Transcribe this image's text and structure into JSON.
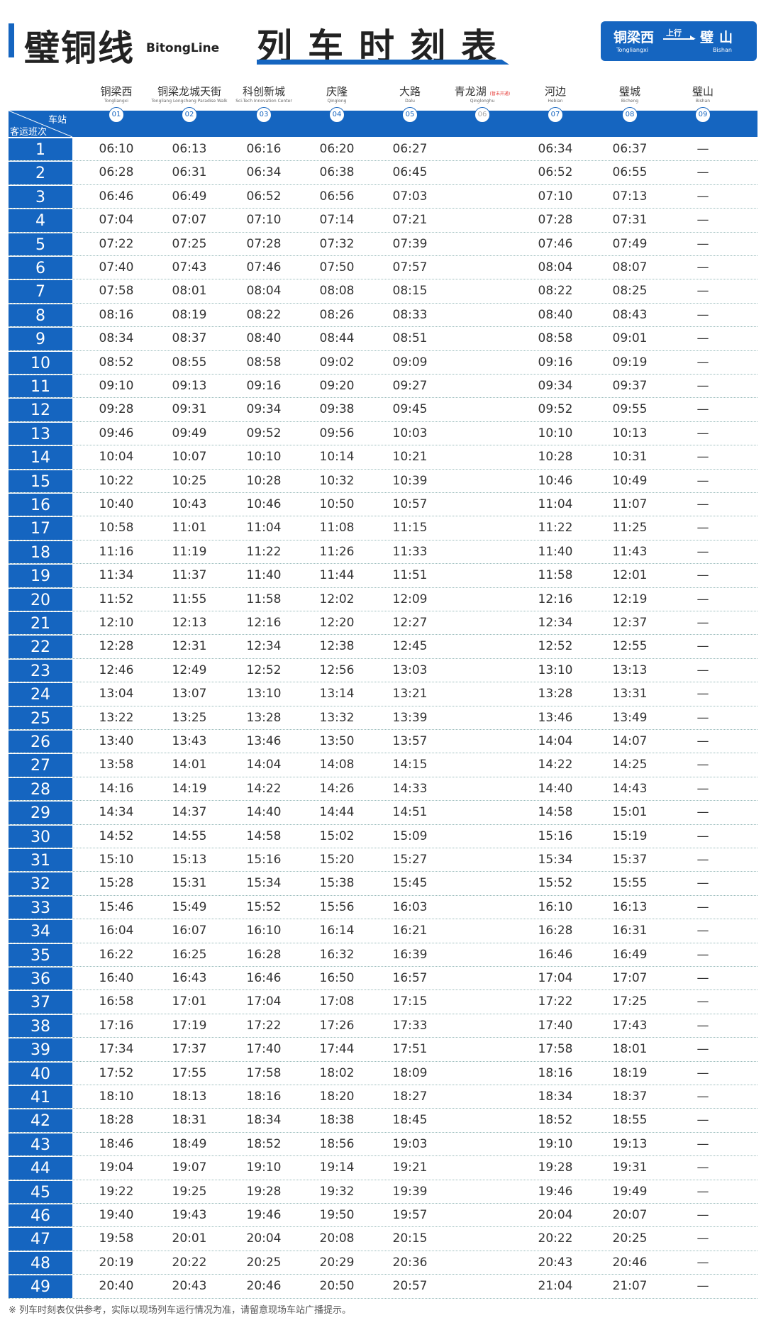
{
  "header": {
    "line_name": "璧铜线",
    "line_en": "BitongLine",
    "title": "列车时刻表",
    "direction": {
      "from": "铜梁西",
      "from_en": "Tongliangxi",
      "label": "上行",
      "to": "璧山",
      "to_en": "Bishan"
    }
  },
  "accent_color": "#1565c0",
  "table": {
    "corner_top": "车站",
    "corner_bottom": "客运班次",
    "stations": [
      {
        "zh": "铜梁西",
        "en": "Tongliangxi",
        "no": "01"
      },
      {
        "zh": "铜梁龙城天街",
        "en": "Tongliang Longcheng Paradise Walk",
        "no": "02"
      },
      {
        "zh": "科创新城",
        "en": "Sci-Tech Innovation Center",
        "no": "03"
      },
      {
        "zh": "庆隆",
        "en": "Qinglong",
        "no": "04"
      },
      {
        "zh": "大路",
        "en": "Dalu",
        "no": "05"
      },
      {
        "zh": "青龙湖",
        "en": "Qinglonghu",
        "no": "06",
        "note": "(暂未开通)"
      },
      {
        "zh": "河边",
        "en": "Hebian",
        "no": "07"
      },
      {
        "zh": "璧城",
        "en": "Bicheng",
        "no": "08"
      },
      {
        "zh": "璧山",
        "en": "Bishan",
        "no": "09"
      }
    ],
    "rows": [
      [
        "1",
        "06:10",
        "06:13",
        "06:16",
        "06:20",
        "06:27",
        "",
        "06:34",
        "06:37",
        "—"
      ],
      [
        "2",
        "06:28",
        "06:31",
        "06:34",
        "06:38",
        "06:45",
        "",
        "06:52",
        "06:55",
        "—"
      ],
      [
        "3",
        "06:46",
        "06:49",
        "06:52",
        "06:56",
        "07:03",
        "",
        "07:10",
        "07:13",
        "—"
      ],
      [
        "4",
        "07:04",
        "07:07",
        "07:10",
        "07:14",
        "07:21",
        "",
        "07:28",
        "07:31",
        "—"
      ],
      [
        "5",
        "07:22",
        "07:25",
        "07:28",
        "07:32",
        "07:39",
        "",
        "07:46",
        "07:49",
        "—"
      ],
      [
        "6",
        "07:40",
        "07:43",
        "07:46",
        "07:50",
        "07:57",
        "",
        "08:04",
        "08:07",
        "—"
      ],
      [
        "7",
        "07:58",
        "08:01",
        "08:04",
        "08:08",
        "08:15",
        "",
        "08:22",
        "08:25",
        "—"
      ],
      [
        "8",
        "08:16",
        "08:19",
        "08:22",
        "08:26",
        "08:33",
        "",
        "08:40",
        "08:43",
        "—"
      ],
      [
        "9",
        "08:34",
        "08:37",
        "08:40",
        "08:44",
        "08:51",
        "",
        "08:58",
        "09:01",
        "—"
      ],
      [
        "10",
        "08:52",
        "08:55",
        "08:58",
        "09:02",
        "09:09",
        "",
        "09:16",
        "09:19",
        "—"
      ],
      [
        "11",
        "09:10",
        "09:13",
        "09:16",
        "09:20",
        "09:27",
        "",
        "09:34",
        "09:37",
        "—"
      ],
      [
        "12",
        "09:28",
        "09:31",
        "09:34",
        "09:38",
        "09:45",
        "",
        "09:52",
        "09:55",
        "—"
      ],
      [
        "13",
        "09:46",
        "09:49",
        "09:52",
        "09:56",
        "10:03",
        "",
        "10:10",
        "10:13",
        "—"
      ],
      [
        "14",
        "10:04",
        "10:07",
        "10:10",
        "10:14",
        "10:21",
        "",
        "10:28",
        "10:31",
        "—"
      ],
      [
        "15",
        "10:22",
        "10:25",
        "10:28",
        "10:32",
        "10:39",
        "",
        "10:46",
        "10:49",
        "—"
      ],
      [
        "16",
        "10:40",
        "10:43",
        "10:46",
        "10:50",
        "10:57",
        "",
        "11:04",
        "11:07",
        "—"
      ],
      [
        "17",
        "10:58",
        "11:01",
        "11:04",
        "11:08",
        "11:15",
        "",
        "11:22",
        "11:25",
        "—"
      ],
      [
        "18",
        "11:16",
        "11:19",
        "11:22",
        "11:26",
        "11:33",
        "",
        "11:40",
        "11:43",
        "—"
      ],
      [
        "19",
        "11:34",
        "11:37",
        "11:40",
        "11:44",
        "11:51",
        "",
        "11:58",
        "12:01",
        "—"
      ],
      [
        "20",
        "11:52",
        "11:55",
        "11:58",
        "12:02",
        "12:09",
        "",
        "12:16",
        "12:19",
        "—"
      ],
      [
        "21",
        "12:10",
        "12:13",
        "12:16",
        "12:20",
        "12:27",
        "",
        "12:34",
        "12:37",
        "—"
      ],
      [
        "22",
        "12:28",
        "12:31",
        "12:34",
        "12:38",
        "12:45",
        "",
        "12:52",
        "12:55",
        "—"
      ],
      [
        "23",
        "12:46",
        "12:49",
        "12:52",
        "12:56",
        "13:03",
        "",
        "13:10",
        "13:13",
        "—"
      ],
      [
        "24",
        "13:04",
        "13:07",
        "13:10",
        "13:14",
        "13:21",
        "",
        "13:28",
        "13:31",
        "—"
      ],
      [
        "25",
        "13:22",
        "13:25",
        "13:28",
        "13:32",
        "13:39",
        "",
        "13:46",
        "13:49",
        "—"
      ],
      [
        "26",
        "13:40",
        "13:43",
        "13:46",
        "13:50",
        "13:57",
        "",
        "14:04",
        "14:07",
        "—"
      ],
      [
        "27",
        "13:58",
        "14:01",
        "14:04",
        "14:08",
        "14:15",
        "",
        "14:22",
        "14:25",
        "—"
      ],
      [
        "28",
        "14:16",
        "14:19",
        "14:22",
        "14:26",
        "14:33",
        "",
        "14:40",
        "14:43",
        "—"
      ],
      [
        "29",
        "14:34",
        "14:37",
        "14:40",
        "14:44",
        "14:51",
        "",
        "14:58",
        "15:01",
        "—"
      ],
      [
        "30",
        "14:52",
        "14:55",
        "14:58",
        "15:02",
        "15:09",
        "",
        "15:16",
        "15:19",
        "—"
      ],
      [
        "31",
        "15:10",
        "15:13",
        "15:16",
        "15:20",
        "15:27",
        "",
        "15:34",
        "15:37",
        "—"
      ],
      [
        "32",
        "15:28",
        "15:31",
        "15:34",
        "15:38",
        "15:45",
        "",
        "15:52",
        "15:55",
        "—"
      ],
      [
        "33",
        "15:46",
        "15:49",
        "15:52",
        "15:56",
        "16:03",
        "",
        "16:10",
        "16:13",
        "—"
      ],
      [
        "34",
        "16:04",
        "16:07",
        "16:10",
        "16:14",
        "16:21",
        "",
        "16:28",
        "16:31",
        "—"
      ],
      [
        "35",
        "16:22",
        "16:25",
        "16:28",
        "16:32",
        "16:39",
        "",
        "16:46",
        "16:49",
        "—"
      ],
      [
        "36",
        "16:40",
        "16:43",
        "16:46",
        "16:50",
        "16:57",
        "",
        "17:04",
        "17:07",
        "—"
      ],
      [
        "37",
        "16:58",
        "17:01",
        "17:04",
        "17:08",
        "17:15",
        "",
        "17:22",
        "17:25",
        "—"
      ],
      [
        "38",
        "17:16",
        "17:19",
        "17:22",
        "17:26",
        "17:33",
        "",
        "17:40",
        "17:43",
        "—"
      ],
      [
        "39",
        "17:34",
        "17:37",
        "17:40",
        "17:44",
        "17:51",
        "",
        "17:58",
        "18:01",
        "—"
      ],
      [
        "40",
        "17:52",
        "17:55",
        "17:58",
        "18:02",
        "18:09",
        "",
        "18:16",
        "18:19",
        "—"
      ],
      [
        "41",
        "18:10",
        "18:13",
        "18:16",
        "18:20",
        "18:27",
        "",
        "18:34",
        "18:37",
        "—"
      ],
      [
        "42",
        "18:28",
        "18:31",
        "18:34",
        "18:38",
        "18:45",
        "",
        "18:52",
        "18:55",
        "—"
      ],
      [
        "43",
        "18:46",
        "18:49",
        "18:52",
        "18:56",
        "19:03",
        "",
        "19:10",
        "19:13",
        "—"
      ],
      [
        "44",
        "19:04",
        "19:07",
        "19:10",
        "19:14",
        "19:21",
        "",
        "19:28",
        "19:31",
        "—"
      ],
      [
        "45",
        "19:22",
        "19:25",
        "19:28",
        "19:32",
        "19:39",
        "",
        "19:46",
        "19:49",
        "—"
      ],
      [
        "46",
        "19:40",
        "19:43",
        "19:46",
        "19:50",
        "19:57",
        "",
        "20:04",
        "20:07",
        "—"
      ],
      [
        "47",
        "19:58",
        "20:01",
        "20:04",
        "20:08",
        "20:15",
        "",
        "20:22",
        "20:25",
        "—"
      ],
      [
        "48",
        "20:19",
        "20:22",
        "20:25",
        "20:29",
        "20:36",
        "",
        "20:43",
        "20:46",
        "—"
      ],
      [
        "49",
        "20:40",
        "20:43",
        "20:46",
        "20:50",
        "20:57",
        "",
        "21:04",
        "21:07",
        "—"
      ]
    ]
  },
  "footer": "※ 列车时刻表仅供参考，实际以现场列车运行情况为准，请留意现场车站广播提示。"
}
